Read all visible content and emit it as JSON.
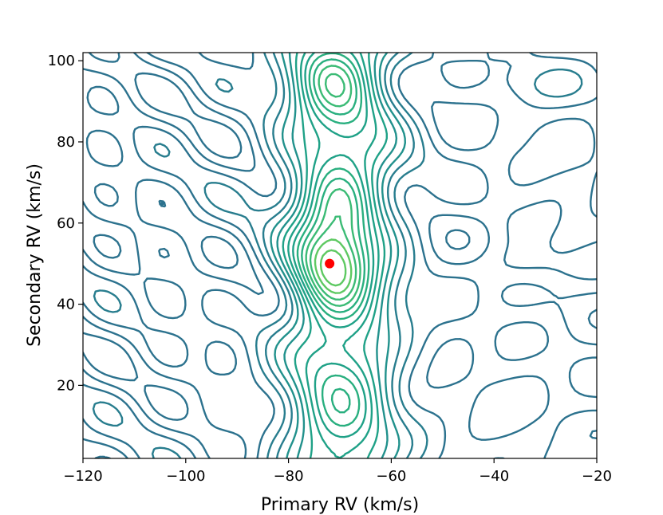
{
  "chart_data": {
    "type": "contour",
    "title": "",
    "xlabel": "Primary RV (km/s)",
    "ylabel": "Secondary RV (km/s)",
    "xlim": [
      -120,
      -20
    ],
    "ylim": [
      2,
      102
    ],
    "xticks": [
      -120,
      -100,
      -80,
      -60,
      -40,
      -20
    ],
    "yticks": [
      20,
      40,
      60,
      80,
      100
    ],
    "x_tick_labels": [
      "−120",
      "−100",
      "−80",
      "−60",
      "−40",
      "−20"
    ],
    "y_tick_labels": [
      "20",
      "40",
      "60",
      "80",
      "100"
    ],
    "grid": false,
    "colormap": "viridis",
    "contour_colors": [
      "#2c728e",
      "#287d8e",
      "#21918c",
      "#1fa187",
      "#29af7f",
      "#3bbb75",
      "#5ec962"
    ],
    "marker": {
      "x": -72,
      "y": 50,
      "color": "#ff0000"
    },
    "ridge_center_x": -70,
    "peak": {
      "x": -72,
      "y": 50
    },
    "secondary_peaks": [
      {
        "x": -72,
        "y": 96
      },
      {
        "x": -70,
        "y": 64
      },
      {
        "x": -33,
        "y": 49
      },
      {
        "x": -33,
        "y": 94
      },
      {
        "x": -51,
        "y": 84
      }
    ]
  }
}
